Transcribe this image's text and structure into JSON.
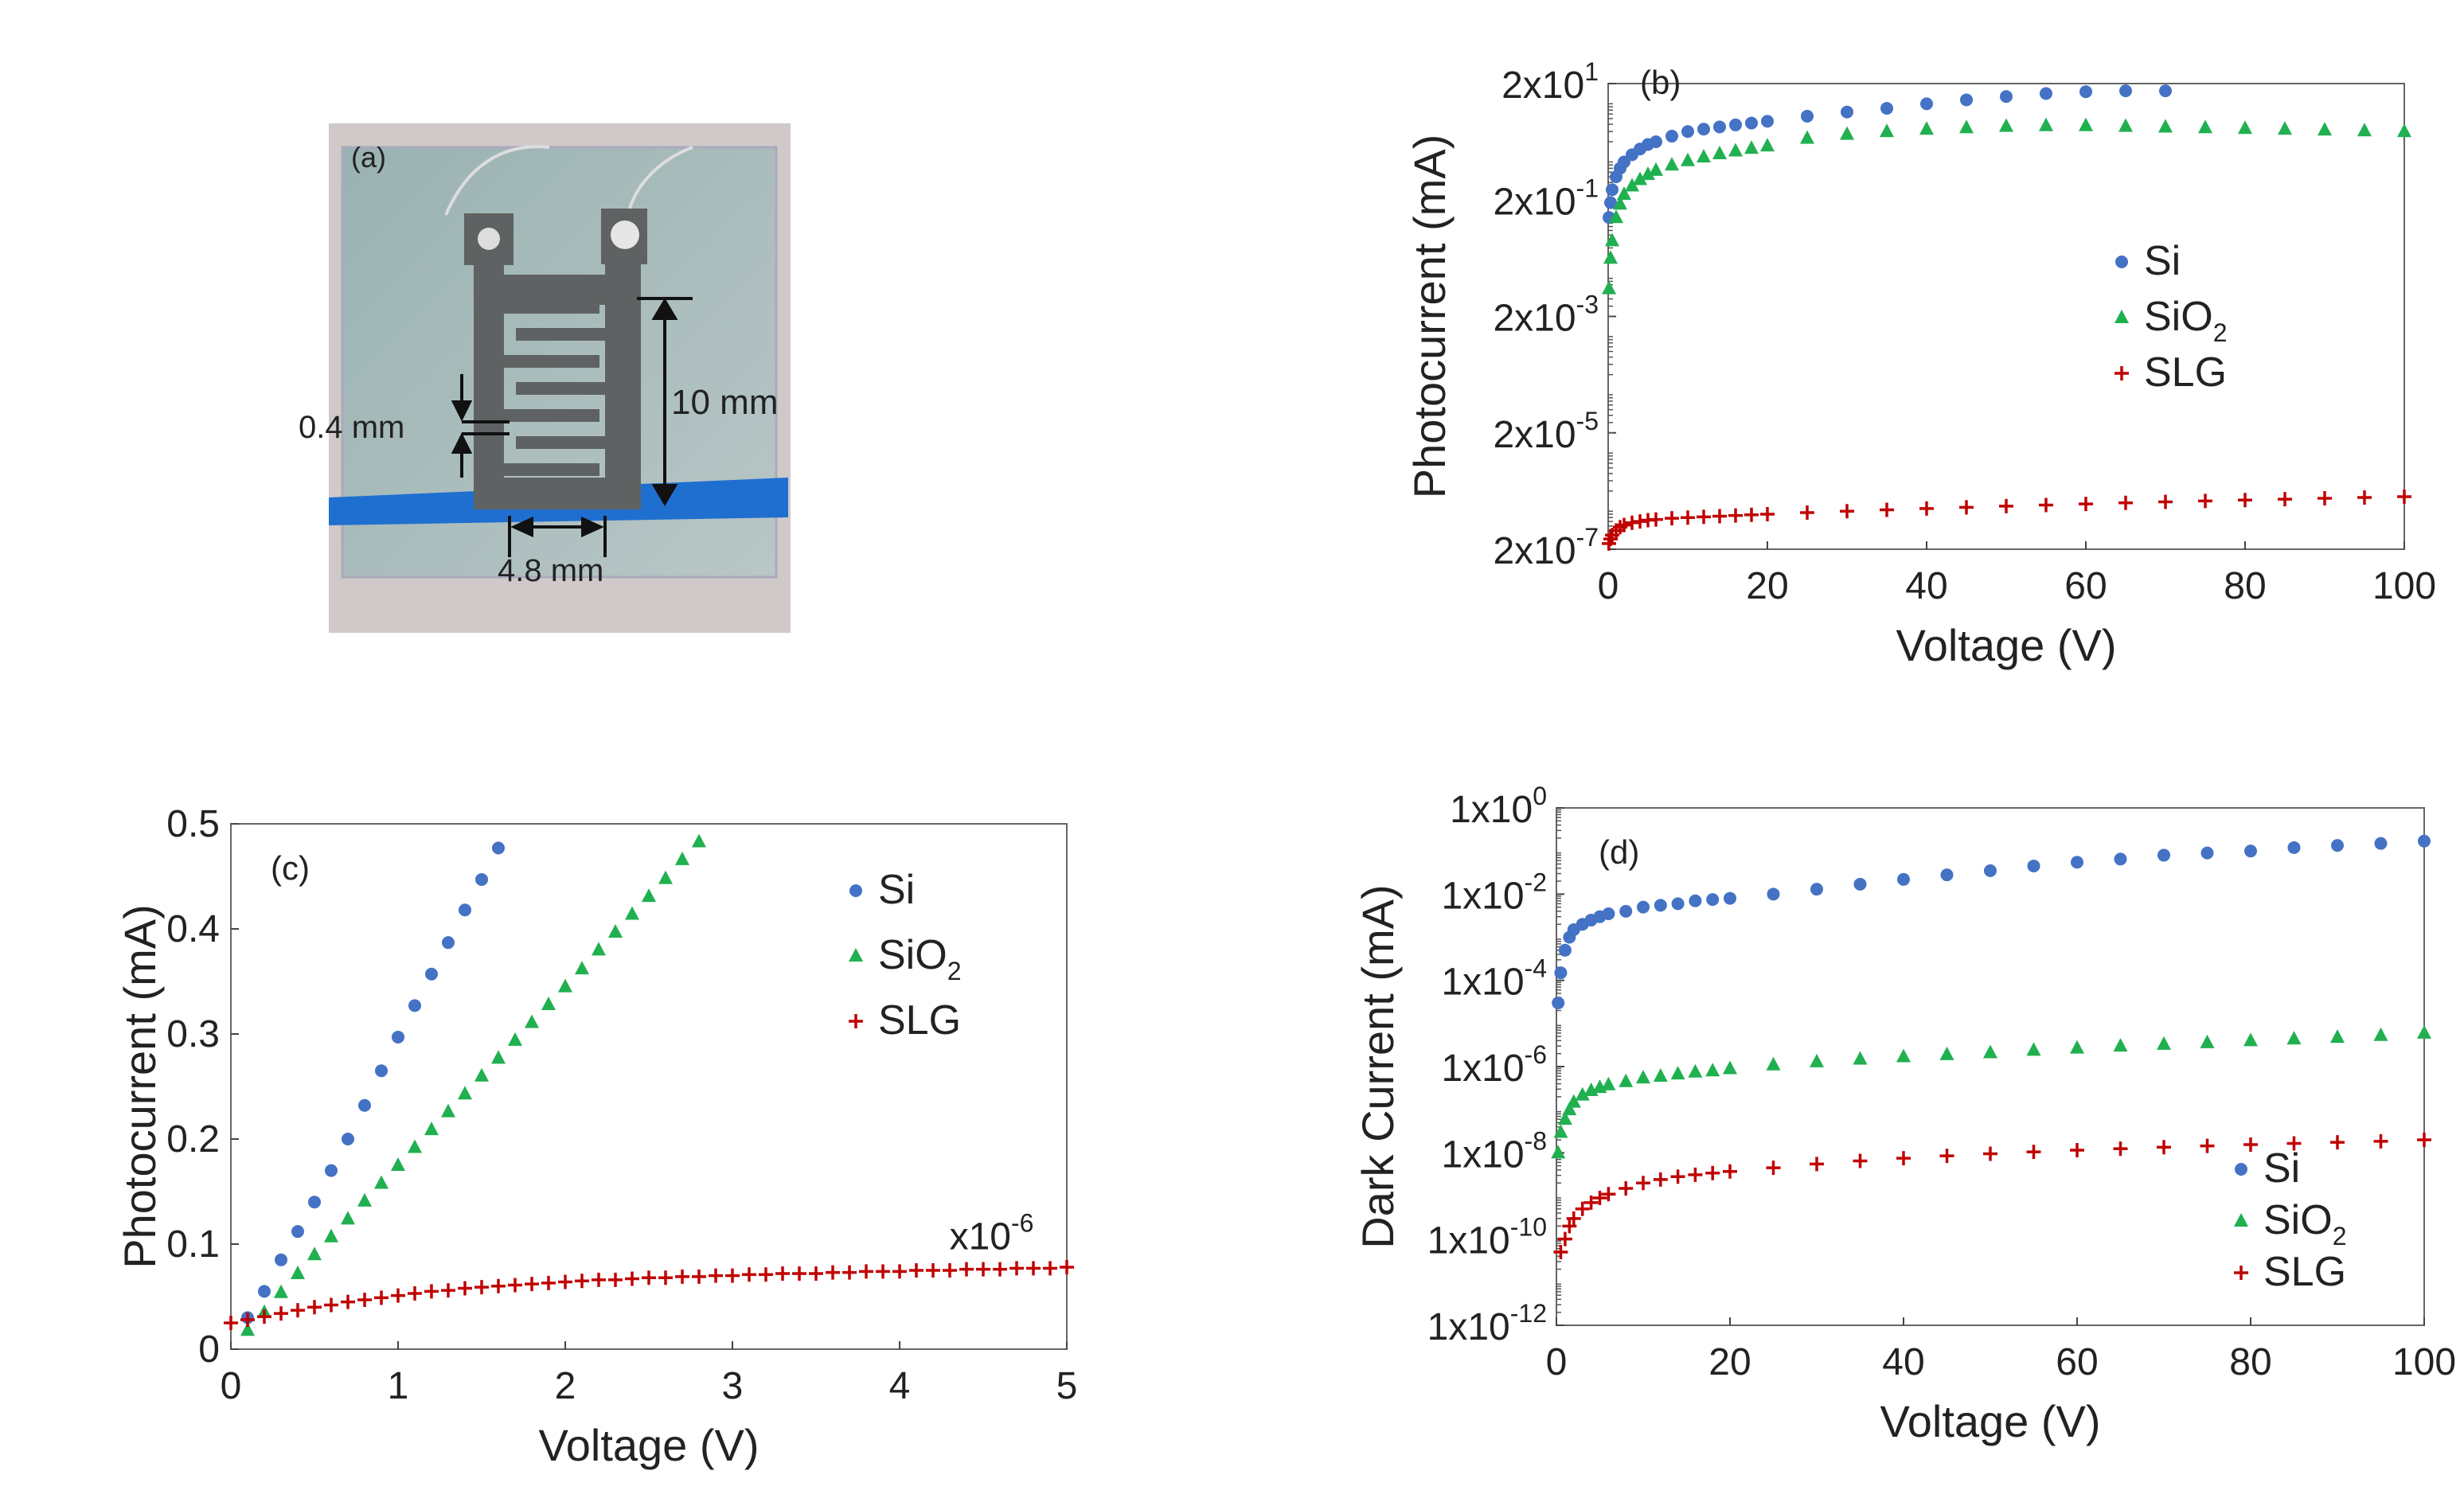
{
  "colors": {
    "si": "#4472c4",
    "sio2": "#20b050",
    "slg": "#c00000",
    "axis": "#333333"
  },
  "photo": {
    "label": "(a)",
    "dims": {
      "gap": "0.4 mm",
      "height": "10 mm",
      "width": "4.8 mm"
    }
  },
  "chart_data": [
    {
      "id": "b",
      "panel_label": "(b)",
      "type": "scatter",
      "yscale": "log",
      "xlabel": "Voltage (V)",
      "ylabel": "Photocurrent (mA)",
      "xlim": [
        0,
        100
      ],
      "ylim": [
        2e-07,
        20
      ],
      "xticks": [
        0,
        20,
        40,
        60,
        80,
        100
      ],
      "yticks": [
        {
          "value": 2e-07,
          "base": "2x10",
          "exp": "-7"
        },
        {
          "value": 2e-05,
          "base": "2x10",
          "exp": "-5"
        },
        {
          "value": 0.002,
          "base": "2x10",
          "exp": "-3"
        },
        {
          "value": 0.2,
          "base": "2x10",
          "exp": "-1"
        },
        {
          "value": 20,
          "base": "2x10",
          "exp": "1"
        }
      ],
      "legend": {
        "position": "right",
        "entries": [
          {
            "series": "Si",
            "name": "Si",
            "sub": ""
          },
          {
            "series": "SiO2",
            "name": "SiO",
            "sub": "2"
          },
          {
            "series": "SLG",
            "name": "SLG",
            "sub": ""
          }
        ]
      },
      "series": [
        {
          "name": "Si",
          "marker": "circle",
          "color_key": "si",
          "x": [
            0.1,
            0.3,
            0.5,
            1,
            1.5,
            2,
            3,
            4,
            5,
            6,
            8,
            10,
            12,
            14,
            16,
            18,
            20,
            25,
            30,
            35,
            40,
            45,
            50,
            55,
            60,
            65,
            70
          ],
          "y": [
            0.1,
            0.18,
            0.3,
            0.5,
            0.7,
            0.9,
            1.2,
            1.5,
            1.8,
            2.0,
            2.5,
            3.0,
            3.3,
            3.6,
            3.9,
            4.2,
            4.5,
            5.5,
            6.5,
            7.5,
            9,
            10.5,
            12,
            13.5,
            14.5,
            15,
            15
          ]
        },
        {
          "name": "SiO2",
          "marker": "triangle",
          "color_key": "sio2",
          "x": [
            0.1,
            0.3,
            0.5,
            1,
            1.5,
            2,
            3,
            4,
            5,
            6,
            8,
            10,
            12,
            14,
            16,
            18,
            20,
            25,
            30,
            35,
            40,
            45,
            50,
            55,
            60,
            65,
            70,
            75,
            80,
            85,
            90,
            95,
            100
          ],
          "y": [
            0.006,
            0.02,
            0.04,
            0.1,
            0.17,
            0.25,
            0.35,
            0.45,
            0.55,
            0.65,
            0.8,
            0.95,
            1.1,
            1.25,
            1.4,
            1.55,
            1.7,
            2.3,
            2.7,
            3.0,
            3.3,
            3.5,
            3.7,
            3.8,
            3.8,
            3.7,
            3.6,
            3.5,
            3.4,
            3.3,
            3.2,
            3.1,
            3.0
          ]
        },
        {
          "name": "SLG",
          "marker": "plus",
          "color_key": "slg",
          "x": [
            0.1,
            0.3,
            0.5,
            1,
            1.5,
            2,
            3,
            4,
            5,
            6,
            8,
            10,
            12,
            14,
            16,
            18,
            20,
            25,
            30,
            35,
            40,
            45,
            50,
            55,
            60,
            65,
            70,
            75,
            80,
            85,
            90,
            95,
            100
          ],
          "y": [
            2.5e-07,
            3e-07,
            3.5e-07,
            4.2e-07,
            4.8e-07,
            5.2e-07,
            5.7e-07,
            6e-07,
            6.3e-07,
            6.5e-07,
            6.8e-07,
            7e-07,
            7.2e-07,
            7.4e-07,
            7.6e-07,
            7.8e-07,
            8e-07,
            8.5e-07,
            9e-07,
            9.5e-07,
            1e-06,
            1.05e-06,
            1.1e-06,
            1.15e-06,
            1.2e-06,
            1.25e-06,
            1.3e-06,
            1.35e-06,
            1.4e-06,
            1.45e-06,
            1.5e-06,
            1.55e-06,
            1.6e-06
          ]
        }
      ]
    },
    {
      "id": "c",
      "panel_label": "(c)",
      "type": "scatter",
      "yscale": "linear",
      "xlabel": "Voltage (V)",
      "ylabel": "Photocurrent (mA)",
      "xlim": [
        0,
        5
      ],
      "ylim": [
        0,
        0.5
      ],
      "xticks": [
        0,
        1,
        2,
        3,
        4,
        5
      ],
      "yticks": [
        {
          "value": 0,
          "label": "0"
        },
        {
          "value": 0.1,
          "label": "0.1"
        },
        {
          "value": 0.2,
          "label": "0.2"
        },
        {
          "value": 0.3,
          "label": "0.3"
        },
        {
          "value": 0.4,
          "label": "0.4"
        },
        {
          "value": 0.5,
          "label": "0.5"
        }
      ],
      "annotation": {
        "base": "x10",
        "exp": "-6",
        "x": 4.55,
        "y": 0.095
      },
      "legend": {
        "position": "top-right",
        "entries": [
          {
            "series": "Si",
            "name": "Si",
            "sub": ""
          },
          {
            "series": "SiO2",
            "name": "SiO",
            "sub": "2"
          },
          {
            "series": "SLG",
            "name": "SLG",
            "sub": ""
          }
        ]
      },
      "series": [
        {
          "name": "Si",
          "marker": "circle",
          "color_key": "si",
          "x": [
            0.1,
            0.2,
            0.3,
            0.4,
            0.5,
            0.6,
            0.7,
            0.8,
            0.9,
            1.0,
            1.1,
            1.2,
            1.3,
            1.4,
            1.5,
            1.6
          ],
          "y": [
            0.03,
            0.055,
            0.085,
            0.112,
            0.14,
            0.17,
            0.2,
            0.232,
            0.265,
            0.297,
            0.327,
            0.357,
            0.387,
            0.418,
            0.447,
            0.477
          ]
        },
        {
          "name": "SiO2",
          "marker": "triangle",
          "color_key": "sio2",
          "x": [
            0.1,
            0.2,
            0.3,
            0.4,
            0.5,
            0.6,
            0.7,
            0.8,
            0.9,
            1.0,
            1.1,
            1.2,
            1.3,
            1.4,
            1.5,
            1.6,
            1.7,
            1.8,
            1.9,
            2.0,
            2.1,
            2.2,
            2.3,
            2.4,
            2.5,
            2.6,
            2.7,
            2.8
          ],
          "y": [
            0.018,
            0.035,
            0.054,
            0.072,
            0.09,
            0.107,
            0.124,
            0.141,
            0.158,
            0.175,
            0.192,
            0.209,
            0.226,
            0.243,
            0.26,
            0.277,
            0.294,
            0.311,
            0.328,
            0.345,
            0.362,
            0.38,
            0.397,
            0.414,
            0.431,
            0.448,
            0.466,
            0.483
          ]
        },
        {
          "name": "SLG",
          "marker": "plus",
          "color_key": "slg",
          "x": [
            0.0,
            0.1,
            0.2,
            0.3,
            0.4,
            0.5,
            0.6,
            0.7,
            0.8,
            0.9,
            1.0,
            1.1,
            1.2,
            1.3,
            1.4,
            1.5,
            1.6,
            1.7,
            1.8,
            1.9,
            2.0,
            2.1,
            2.2,
            2.3,
            2.4,
            2.5,
            2.6,
            2.7,
            2.8,
            2.9,
            3.0,
            3.1,
            3.2,
            3.3,
            3.4,
            3.5,
            3.6,
            3.7,
            3.8,
            3.9,
            4.0,
            4.1,
            4.2,
            4.3,
            4.4,
            4.5,
            4.6,
            4.7,
            4.8,
            4.9,
            5.0
          ],
          "y": [
            0.025,
            0.028,
            0.031,
            0.034,
            0.037,
            0.04,
            0.042,
            0.045,
            0.047,
            0.049,
            0.051,
            0.053,
            0.055,
            0.056,
            0.058,
            0.059,
            0.06,
            0.061,
            0.062,
            0.063,
            0.064,
            0.065,
            0.066,
            0.066,
            0.067,
            0.068,
            0.068,
            0.069,
            0.069,
            0.07,
            0.07,
            0.071,
            0.071,
            0.072,
            0.072,
            0.072,
            0.073,
            0.073,
            0.074,
            0.074,
            0.074,
            0.075,
            0.075,
            0.075,
            0.076,
            0.076,
            0.076,
            0.077,
            0.077,
            0.077,
            0.078
          ]
        }
      ]
    },
    {
      "id": "d",
      "panel_label": "(d)",
      "type": "scatter",
      "yscale": "log",
      "xlabel": "Voltage (V)",
      "ylabel": "Dark Current (mA)",
      "xlim": [
        0,
        100
      ],
      "ylim": [
        1e-12,
        1
      ],
      "xticks": [
        0,
        20,
        40,
        60,
        80,
        100
      ],
      "yticks": [
        {
          "value": 1e-12,
          "base": "1x10",
          "exp": "-12"
        },
        {
          "value": 1e-10,
          "base": "1x10",
          "exp": "-10"
        },
        {
          "value": 1e-08,
          "base": "1x10",
          "exp": "-8"
        },
        {
          "value": 1e-06,
          "base": "1x10",
          "exp": "-6"
        },
        {
          "value": 0.0001,
          "base": "1x10",
          "exp": "-4"
        },
        {
          "value": 0.01,
          "base": "1x10",
          "exp": "-2"
        },
        {
          "value": 1,
          "base": "1x10",
          "exp": "0"
        }
      ],
      "legend": {
        "position": "bottom-right",
        "entries": [
          {
            "series": "Si",
            "name": "Si",
            "sub": ""
          },
          {
            "series": "SiO2",
            "name": "SiO",
            "sub": "2"
          },
          {
            "series": "SLG",
            "name": "SLG",
            "sub": ""
          }
        ]
      },
      "series": [
        {
          "name": "Si",
          "marker": "circle",
          "color_key": "si",
          "x": [
            0.2,
            0.5,
            1,
            1.5,
            2,
            3,
            4,
            5,
            6,
            8,
            10,
            12,
            14,
            16,
            18,
            20,
            25,
            30,
            35,
            40,
            45,
            50,
            55,
            60,
            65,
            70,
            75,
            80,
            85,
            90,
            95,
            100
          ],
          "y": [
            3e-05,
            0.00015,
            0.0005,
            0.001,
            0.0015,
            0.002,
            0.0025,
            0.003,
            0.0035,
            0.004,
            0.005,
            0.0055,
            0.006,
            0.007,
            0.0075,
            0.008,
            0.01,
            0.013,
            0.017,
            0.022,
            0.028,
            0.035,
            0.045,
            0.055,
            0.065,
            0.08,
            0.09,
            0.1,
            0.12,
            0.135,
            0.15,
            0.17
          ]
        },
        {
          "name": "SiO2",
          "marker": "triangle",
          "color_key": "sio2",
          "x": [
            0.2,
            0.5,
            1,
            1.5,
            2,
            3,
            4,
            5,
            6,
            8,
            10,
            12,
            14,
            16,
            18,
            20,
            25,
            30,
            35,
            40,
            45,
            50,
            55,
            60,
            65,
            70,
            75,
            80,
            85,
            90,
            95,
            100
          ],
          "y": [
            1e-08,
            3e-08,
            6e-08,
            1e-07,
            1.5e-07,
            2.2e-07,
            2.8e-07,
            3.3e-07,
            3.8e-07,
            4.5e-07,
            5.5e-07,
            6e-07,
            6.8e-07,
            7.5e-07,
            8e-07,
            9e-07,
            1.1e-06,
            1.3e-06,
            1.5e-06,
            1.7e-06,
            1.9e-06,
            2.1e-06,
            2.4e-06,
            2.7e-06,
            3e-06,
            3.3e-06,
            3.6e-06,
            4e-06,
            4.4e-06,
            4.8e-06,
            5.3e-06,
            6e-06
          ]
        },
        {
          "name": "SLG",
          "marker": "plus",
          "color_key": "slg",
          "x": [
            0.5,
            1,
            1.5,
            2,
            3,
            4,
            5,
            6,
            8,
            10,
            12,
            14,
            16,
            18,
            20,
            25,
            30,
            35,
            40,
            45,
            50,
            55,
            60,
            65,
            70,
            75,
            80,
            85,
            90,
            95,
            100
          ],
          "y": [
            5e-11,
            1e-10,
            2e-10,
            3e-10,
            5e-10,
            7e-10,
            9e-10,
            1.1e-09,
            1.5e-09,
            2e-09,
            2.4e-09,
            2.8e-09,
            3.1e-09,
            3.4e-09,
            3.7e-09,
            4.5e-09,
            5.5e-09,
            6.5e-09,
            7.5e-09,
            8.5e-09,
            9.5e-09,
            1.05e-08,
            1.15e-08,
            1.25e-08,
            1.35e-08,
            1.45e-08,
            1.55e-08,
            1.65e-08,
            1.75e-08,
            1.85e-08,
            2e-08
          ]
        }
      ]
    }
  ]
}
